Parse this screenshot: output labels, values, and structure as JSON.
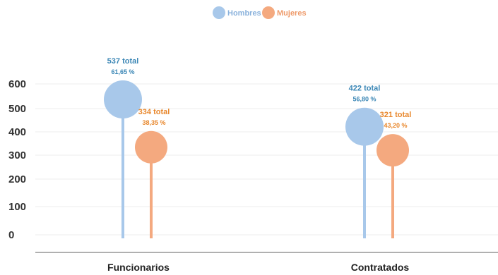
{
  "chart_data": {
    "type": "lollipop",
    "legend": {
      "position": "top-center",
      "items": [
        {
          "name": "Hombres",
          "color": "#a8c8ea"
        },
        {
          "name": "Mujeres",
          "color": "#f4a97f"
        }
      ]
    },
    "categories": [
      "Funcionarios",
      "Contratados"
    ],
    "series": [
      {
        "name": "Hombres",
        "color": "#a8c8ea",
        "label_color": "#3a86b5",
        "values": [
          537,
          422
        ],
        "total_labels": [
          "537 total",
          "422 total"
        ],
        "percent_labels": [
          "61,65 %",
          "56,80 %"
        ]
      },
      {
        "name": "Mujeres",
        "color": "#f4a97f",
        "label_color": "#e8872c",
        "values": [
          334,
          321
        ],
        "total_labels": [
          "334 total",
          "321 total"
        ],
        "percent_labels": [
          "38,35 %",
          "43,20 %"
        ]
      }
    ],
    "y_ticks": [
      0,
      100,
      200,
      300,
      400,
      500,
      600
    ],
    "grid": true,
    "axis_color": "#b0b0b0",
    "grid_color": "#ececec"
  }
}
